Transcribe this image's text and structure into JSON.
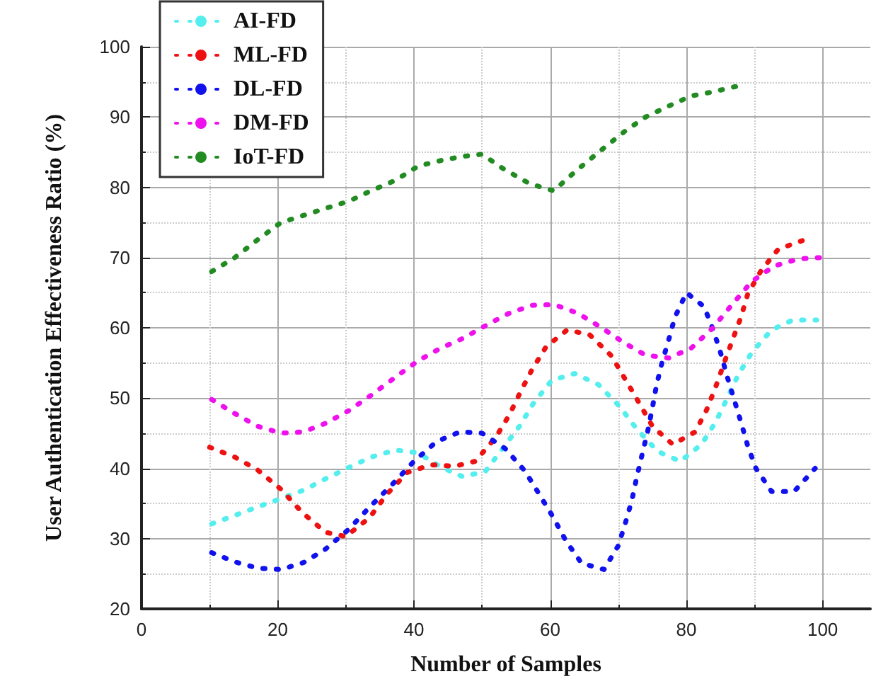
{
  "chart_data": {
    "type": "line",
    "xlabel": "Number of Samples",
    "ylabel": "User Authentication Effectiveness Ratio (%)",
    "xlim": [
      0,
      107
    ],
    "xticks": [
      0,
      20,
      40,
      60,
      80,
      100
    ],
    "ylim": [
      20,
      100
    ],
    "yticks": [
      20,
      30,
      40,
      50,
      60,
      70,
      80,
      90,
      100
    ],
    "grid": true,
    "legend": "top left",
    "marker": "none",
    "line_style": "dotted",
    "series": [
      {
        "name": "AI-FD",
        "color": "#55eeee",
        "x": [
          10.3,
          13.7,
          17,
          20.5,
          23.8,
          27,
          30.4,
          33.7,
          37.3,
          40.6,
          43.9,
          47.2,
          50.5,
          55.5,
          57.5,
          60.2,
          63.6,
          67.1,
          70.2,
          72.7,
          75.8,
          79.1,
          82.2,
          84.3,
          86,
          87.6,
          89.6,
          92.5,
          95.6,
          99.1
        ],
        "values": [
          32.1,
          33.3,
          34.5,
          35.7,
          36.9,
          38.5,
          40.1,
          41.6,
          42.6,
          42.2,
          40.2,
          38.8,
          39.6,
          46,
          49.2,
          52.5,
          53.5,
          51.9,
          48.8,
          45.6,
          42.4,
          41,
          43.4,
          46.6,
          50,
          53.3,
          56.5,
          59.7,
          61.1,
          61.1
        ]
      },
      {
        "name": "ML-FD",
        "color": "#ee1111",
        "x": [
          10,
          13.7,
          17,
          20.5,
          23.6,
          27,
          30,
          33.5,
          36,
          39,
          42.5,
          46,
          49,
          52,
          54,
          55.6,
          57.3,
          59.4,
          62.5,
          65.8,
          69,
          71,
          73,
          75,
          78,
          81.3,
          83,
          84.3,
          85.5,
          86.7,
          88,
          89,
          91,
          93.5,
          97
        ],
        "values": [
          43,
          41.6,
          39.8,
          37,
          33.7,
          30.9,
          30.3,
          33,
          36.3,
          39.4,
          40.5,
          40.3,
          41,
          44.4,
          47.6,
          50.8,
          54,
          57.3,
          59.7,
          59,
          56,
          52.7,
          49.4,
          46,
          43.4,
          45.2,
          48.4,
          51.6,
          54.9,
          58.1,
          61.5,
          64.8,
          68.2,
          71.2,
          72.4
        ]
      },
      {
        "name": "DL-FD",
        "color": "#1111ee",
        "x": [
          10.3,
          13.7,
          17,
          20.5,
          23.8,
          27,
          30.4,
          33.5,
          36.8,
          40,
          43.3,
          46.8,
          50,
          53.4,
          56.3,
          58.4,
          60.4,
          62.3,
          64.6,
          67.9,
          70,
          71,
          72,
          72.7,
          73.5,
          74.3,
          75,
          75.6,
          76.4,
          77.4,
          78.3,
          80,
          82.6,
          84,
          85,
          86,
          87,
          88,
          89,
          90.2,
          92.5,
          95.8,
          98.9
        ],
        "values": [
          28,
          26.7,
          25.8,
          25.6,
          26.6,
          28.5,
          31.3,
          34.5,
          37.7,
          41,
          43.8,
          45.2,
          45,
          42.8,
          39.6,
          36.3,
          33.1,
          29.7,
          26.5,
          25.6,
          29,
          32.1,
          35.5,
          38.7,
          42,
          45.2,
          48.6,
          51.8,
          55,
          58.3,
          61.5,
          65,
          63,
          59.5,
          56.5,
          53,
          49.8,
          46.6,
          43.2,
          40,
          36.7,
          36.7,
          40
        ]
      },
      {
        "name": "DM-FD",
        "color": "#ee11ee",
        "x": [
          10.3,
          13.7,
          17,
          20.5,
          23.8,
          27,
          30.4,
          33.7,
          37.3,
          40.6,
          43.9,
          47.2,
          50.5,
          53.8,
          57.3,
          60.6,
          64,
          67.4,
          70.8,
          74,
          77.4,
          80.7,
          83.8,
          86.7,
          89.6,
          92.9,
          96.5,
          99.8
        ],
        "values": [
          49.8,
          47.8,
          46,
          45,
          45.2,
          46.4,
          48.2,
          50.4,
          53,
          55.3,
          57.1,
          58.5,
          60.3,
          62,
          63.2,
          63.3,
          62.1,
          60.1,
          57.9,
          56.1,
          55.7,
          57.1,
          59.9,
          63.3,
          66.6,
          68.8,
          69.8,
          70
        ]
      },
      {
        "name": "IoT-FD",
        "color": "#228b22",
        "x": [
          10.3,
          13.7,
          17,
          20.5,
          23.8,
          27,
          30.4,
          33.7,
          37.3,
          40.6,
          43.9,
          47.2,
          50,
          53,
          57,
          60.5,
          64,
          67.5,
          71,
          74,
          77.5,
          80.7,
          84,
          87.5
        ],
        "values": [
          68,
          70,
          72.5,
          75,
          76,
          77,
          78,
          79.5,
          81,
          83,
          83.8,
          84.4,
          84.7,
          82.7,
          80.5,
          79.5,
          82.5,
          85.3,
          88,
          90,
          91.6,
          93,
          93.6,
          94.4
        ]
      }
    ]
  }
}
